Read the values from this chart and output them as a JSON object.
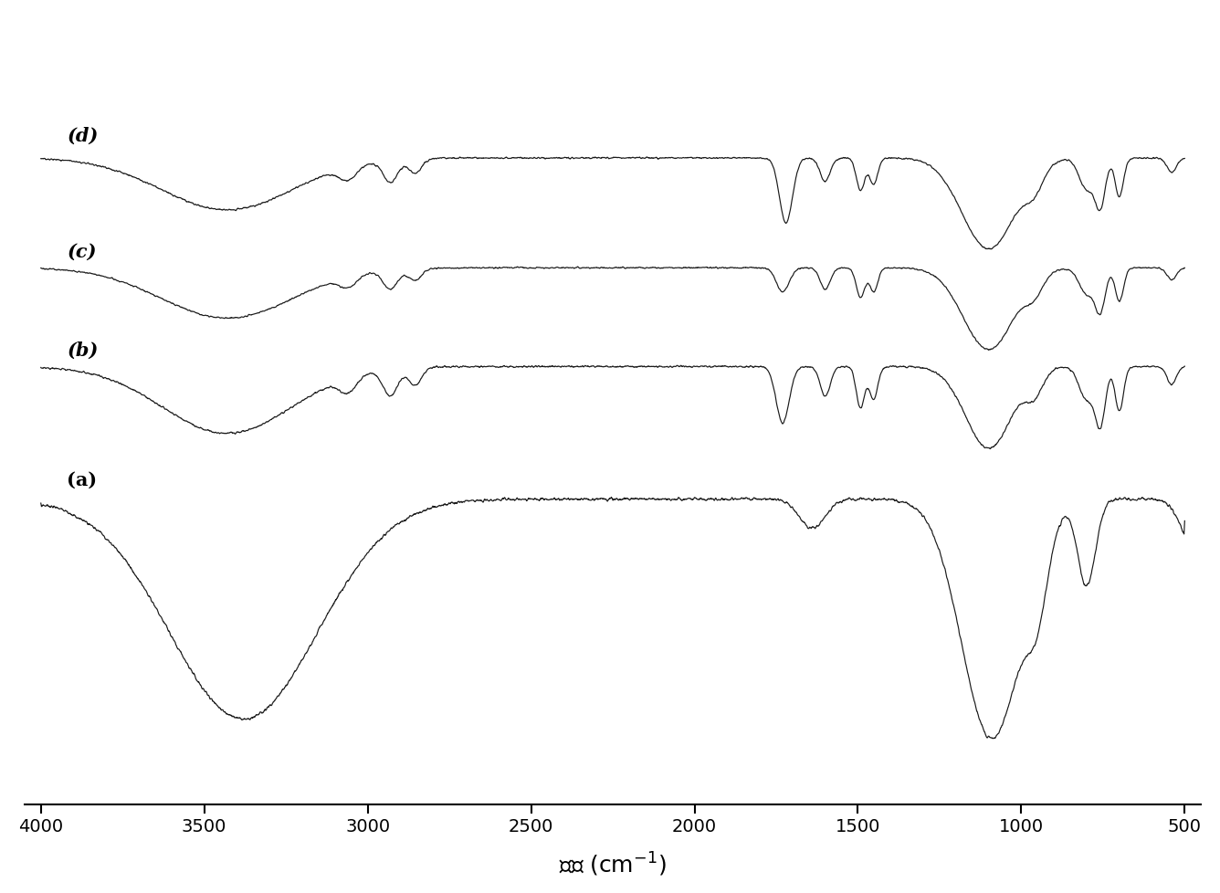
{
  "x_min": 500,
  "x_max": 4000,
  "xlabel": "波长 (cm$^{-1}$)",
  "xticks": [
    4000,
    3500,
    3000,
    2500,
    2000,
    1500,
    1000,
    500
  ],
  "labels": [
    "(a)",
    "(b)",
    "(c)",
    "(d)"
  ],
  "line_color": "#1a1a1a",
  "bg_color": "#ffffff",
  "figsize": [
    13.36,
    9.79
  ],
  "dpi": 100
}
